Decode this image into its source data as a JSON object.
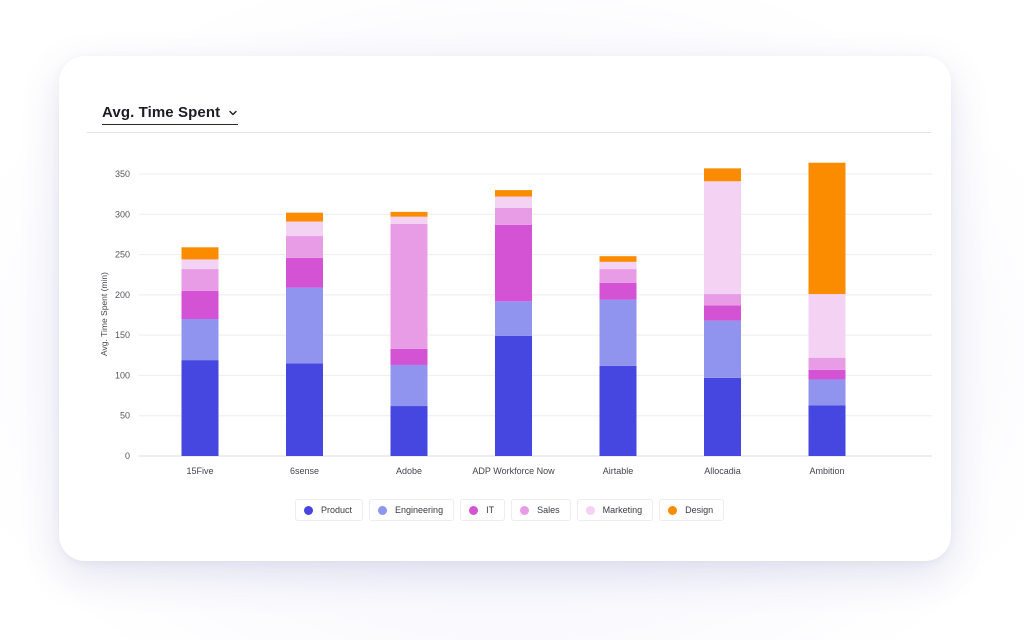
{
  "header": {
    "title": "Avg. Time Spent",
    "dropdown_icon": "chevron-down-icon"
  },
  "chart_data": {
    "type": "bar",
    "stacked": true,
    "title": "Avg. Time Spent",
    "xlabel": "",
    "ylabel": "Avg. Time Spent (min)",
    "ylim": [
      0,
      350
    ],
    "yticks": [
      0,
      50,
      100,
      150,
      200,
      250,
      300,
      350
    ],
    "grid": true,
    "legend_position": "bottom",
    "categories": [
      "15Five",
      "6sense",
      "Adobe",
      "ADP Workforce Now",
      "Airtable",
      "Allocadia",
      "Ambition"
    ],
    "series": [
      {
        "name": "Product",
        "color": "#4646e0",
        "values": [
          119,
          115,
          62,
          149,
          112,
          97,
          63
        ]
      },
      {
        "name": "Engineering",
        "color": "#9094ee",
        "values": [
          51,
          94,
          51,
          43,
          82,
          71,
          32
        ]
      },
      {
        "name": "IT",
        "color": "#d452d4",
        "values": [
          35,
          37,
          20,
          95,
          21,
          19,
          12
        ]
      },
      {
        "name": "Sales",
        "color": "#e79ce5",
        "values": [
          27,
          27,
          155,
          21,
          17,
          14,
          15
        ]
      },
      {
        "name": "Marketing",
        "color": "#f3d2f3",
        "values": [
          12,
          18,
          9,
          14,
          9,
          140,
          79
        ]
      },
      {
        "name": "Design",
        "color": "#fb8c00",
        "values": [
          15,
          11,
          6,
          8,
          7,
          16,
          163
        ]
      }
    ]
  }
}
